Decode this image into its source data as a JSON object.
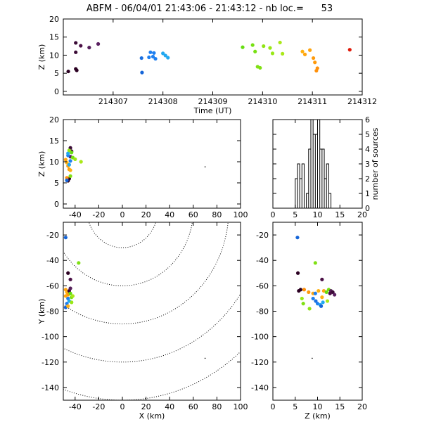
{
  "title": "ABFM - 06/04/01 21:43:06 - 21:43:12 - nb loc.=      53",
  "chart_data": [
    {
      "id": "time-height",
      "type": "scatter",
      "xlabel": "Time (UT)",
      "ylabel": "Z (km)",
      "xlim": [
        214306.0,
        214312.0
      ],
      "ylim": [
        -1,
        20
      ],
      "xticks": [
        "214307",
        "214308",
        "214309",
        "214310",
        "214311",
        "214312"
      ],
      "yticks": [
        0,
        5,
        10,
        15,
        20
      ],
      "points": [
        {
          "t": 214306.1,
          "z": 5.5,
          "c": "#2b0022"
        },
        {
          "t": 214306.25,
          "z": 6.2,
          "c": "#2b0022"
        },
        {
          "t": 214306.27,
          "z": 5.8,
          "c": "#2b0022"
        },
        {
          "t": 214306.25,
          "z": 10.8,
          "c": "#3a0a36"
        },
        {
          "t": 214306.25,
          "z": 13.4,
          "c": "#3a0a36"
        },
        {
          "t": 214306.35,
          "z": 12.6,
          "c": "#4a0f45"
        },
        {
          "t": 214306.52,
          "z": 12.1,
          "c": "#55205a"
        },
        {
          "t": 214306.7,
          "z": 13.1,
          "c": "#5a2060"
        },
        {
          "t": 214307.58,
          "z": 5.2,
          "c": "#1565d8"
        },
        {
          "t": 214307.57,
          "z": 9.2,
          "c": "#1a6fe0"
        },
        {
          "t": 214307.75,
          "z": 10.8,
          "c": "#1e7ff0"
        },
        {
          "t": 214307.8,
          "z": 9.6,
          "c": "#1e7ff0"
        },
        {
          "t": 214307.85,
          "z": 9.0,
          "c": "#1e7ff0"
        },
        {
          "t": 214307.72,
          "z": 9.4,
          "c": "#1e7ff0"
        },
        {
          "t": 214307.82,
          "z": 10.6,
          "c": "#1e7ff0"
        },
        {
          "t": 214308.05,
          "z": 9.9,
          "c": "#22a8f0"
        },
        {
          "t": 214308.1,
          "z": 9.3,
          "c": "#22a8f0"
        },
        {
          "t": 214308.0,
          "z": 10.5,
          "c": "#22a8f0"
        },
        {
          "t": 214309.6,
          "z": 12.2,
          "c": "#66dd11"
        },
        {
          "t": 214309.8,
          "z": 12.8,
          "c": "#77e012"
        },
        {
          "t": 214309.85,
          "z": 11.0,
          "c": "#77e012"
        },
        {
          "t": 214309.9,
          "z": 6.8,
          "c": "#80e014"
        },
        {
          "t": 214309.95,
          "z": 6.5,
          "c": "#80e014"
        },
        {
          "t": 214310.02,
          "z": 12.5,
          "c": "#90e414"
        },
        {
          "t": 214310.15,
          "z": 12.0,
          "c": "#99e816"
        },
        {
          "t": 214310.2,
          "z": 10.5,
          "c": "#99e816"
        },
        {
          "t": 214310.35,
          "z": 13.5,
          "c": "#aae818"
        },
        {
          "t": 214310.4,
          "z": 10.4,
          "c": "#aae818"
        },
        {
          "t": 214310.8,
          "z": 11.0,
          "c": "#ffb010"
        },
        {
          "t": 214310.85,
          "z": 10.2,
          "c": "#ffa510"
        },
        {
          "t": 214310.95,
          "z": 11.4,
          "c": "#ffa510"
        },
        {
          "t": 214311.02,
          "z": 9.2,
          "c": "#ff9a0a"
        },
        {
          "t": 214311.05,
          "z": 8.0,
          "c": "#ff9a0a"
        },
        {
          "t": 214311.1,
          "z": 6.4,
          "c": "#ff900a"
        },
        {
          "t": 214311.08,
          "z": 5.7,
          "c": "#ff900a"
        },
        {
          "t": 214311.75,
          "z": 11.5,
          "c": "#e01a0a"
        }
      ]
    },
    {
      "id": "x-height",
      "type": "scatter",
      "xlabel": "",
      "ylabel": "Z (km)",
      "xlim": [
        -50,
        100
      ],
      "ylim": [
        -1,
        20
      ],
      "xticks": [
        -40,
        -20,
        0,
        20,
        40,
        60,
        80,
        100
      ],
      "yticks": [
        0,
        5,
        10,
        15,
        20
      ],
      "points": [
        {
          "x": -46,
          "z": 5.5,
          "c": "#2b0022"
        },
        {
          "x": -45,
          "z": 6.0,
          "c": "#2b0022"
        },
        {
          "x": -44,
          "z": 13.3,
          "c": "#3a0a36"
        },
        {
          "x": -43,
          "z": 12.5,
          "c": "#4a0f45"
        },
        {
          "x": -44,
          "z": 11.2,
          "c": "#55205a"
        },
        {
          "x": -47,
          "z": 9.8,
          "c": "#ffb010"
        },
        {
          "x": -48,
          "z": 10.5,
          "c": "#ffa510"
        },
        {
          "x": -46,
          "z": 9.0,
          "c": "#ffa510"
        },
        {
          "x": -45,
          "z": 8.2,
          "c": "#ff9a0a"
        },
        {
          "x": -47,
          "z": 6.2,
          "c": "#ff900a"
        },
        {
          "x": -46,
          "z": 11.5,
          "c": "#1e7ff0"
        },
        {
          "x": -44,
          "z": 10.2,
          "c": "#1e7ff0"
        },
        {
          "x": -45,
          "z": 9.3,
          "c": "#22a8f0"
        },
        {
          "x": -46,
          "z": 12.0,
          "c": "#22a8f0"
        },
        {
          "x": -47,
          "z": 5.6,
          "c": "#1565d8"
        },
        {
          "x": -43,
          "z": 12.2,
          "c": "#66dd11"
        },
        {
          "x": -42,
          "z": 11.0,
          "c": "#77e012"
        },
        {
          "x": -44,
          "z": 6.6,
          "c": "#80e014"
        },
        {
          "x": -40,
          "z": 10.6,
          "c": "#99e816"
        },
        {
          "x": -35,
          "z": 10.0,
          "c": "#aae818"
        },
        {
          "x": -45,
          "z": 12.7,
          "c": "#90e414"
        },
        {
          "x": -44,
          "z": 8.0,
          "c": "#ffb010"
        },
        {
          "x": 70,
          "z": 8.8,
          "c": "#000000",
          "r": 0.8
        }
      ]
    },
    {
      "id": "height-histogram",
      "type": "bar",
      "xlabel": "",
      "ylabel": "number of sources",
      "xlim": [
        0,
        20
      ],
      "ylim": [
        0,
        6
      ],
      "xticks": [
        0,
        5,
        10,
        15,
        20
      ],
      "yticks": [
        0,
        1,
        2,
        3,
        4,
        5,
        6
      ],
      "bin_width": 0.5,
      "bins": [
        {
          "x0": 5.0,
          "count": 2
        },
        {
          "x0": 5.5,
          "count": 3
        },
        {
          "x0": 6.0,
          "count": 2
        },
        {
          "x0": 6.5,
          "count": 3
        },
        {
          "x0": 7.0,
          "count": 0
        },
        {
          "x0": 7.5,
          "count": 1
        },
        {
          "x0": 8.0,
          "count": 4
        },
        {
          "x0": 8.5,
          "count": 6
        },
        {
          "x0": 9.0,
          "count": 5
        },
        {
          "x0": 9.5,
          "count": 5
        },
        {
          "x0": 10.0,
          "count": 6
        },
        {
          "x0": 10.5,
          "count": 4
        },
        {
          "x0": 11.0,
          "count": 4
        },
        {
          "x0": 11.5,
          "count": 2
        },
        {
          "x0": 12.0,
          "count": 3
        },
        {
          "x0": 12.5,
          "count": 1
        },
        {
          "x0": 13.0,
          "count": 0
        }
      ]
    },
    {
      "id": "plan-view",
      "type": "scatter",
      "xlabel": "X (km)",
      "ylabel": "Y (km)",
      "xlim": [
        -50,
        100
      ],
      "ylim": [
        -150,
        -10
      ],
      "xticks": [
        -40,
        -20,
        0,
        20,
        40,
        60,
        80,
        100
      ],
      "yticks": [
        -20,
        -40,
        -60,
        -80,
        -100,
        -120,
        -140
      ],
      "range_rings_km": [
        30,
        60,
        90,
        120,
        150,
        180
      ],
      "ring_center": [
        0,
        0
      ],
      "points": [
        {
          "x": -48,
          "y": -22,
          "c": "#1565d8"
        },
        {
          "x": -37,
          "y": -42,
          "c": "#80e014"
        },
        {
          "x": -46,
          "y": -50,
          "c": "#2b0022"
        },
        {
          "x": -44,
          "y": -55,
          "c": "#4a0f45"
        },
        {
          "x": -48,
          "y": -63,
          "c": "#ffa510"
        },
        {
          "x": -47,
          "y": -65,
          "c": "#ffb010"
        },
        {
          "x": -46,
          "y": -67,
          "c": "#ff9a0a"
        },
        {
          "x": -45,
          "y": -64,
          "c": "#3a0a36"
        },
        {
          "x": -48,
          "y": -68,
          "c": "#ffa510"
        },
        {
          "x": -46,
          "y": -70,
          "c": "#1e7ff0"
        },
        {
          "x": -44,
          "y": -66,
          "c": "#66dd11"
        },
        {
          "x": -43,
          "y": -69,
          "c": "#77e012"
        },
        {
          "x": -45,
          "y": -72,
          "c": "#22a8f0"
        },
        {
          "x": -47,
          "y": -74,
          "c": "#1e7ff0"
        },
        {
          "x": -48,
          "y": -77,
          "c": "#1565d8"
        },
        {
          "x": -43,
          "y": -73,
          "c": "#99e816"
        },
        {
          "x": -46,
          "y": -76,
          "c": "#ffb010"
        },
        {
          "x": -44,
          "y": -62,
          "c": "#55205a"
        },
        {
          "x": -42,
          "y": -68,
          "c": "#aae818"
        },
        {
          "x": 70,
          "y": -117,
          "c": "#000000",
          "r": 0.8
        }
      ]
    },
    {
      "id": "z-y-view",
      "type": "scatter",
      "xlabel": "Z (km)",
      "ylabel": "",
      "xlim": [
        0,
        20
      ],
      "ylim": [
        -150,
        -10
      ],
      "xticks": [
        0,
        5,
        10,
        15,
        20
      ],
      "yticks": [
        -20,
        -40,
        -60,
        -80,
        -100,
        -120,
        -140
      ],
      "points": [
        {
          "z": 5.5,
          "y": -22,
          "c": "#1565d8"
        },
        {
          "z": 9.5,
          "y": -42,
          "c": "#80e014"
        },
        {
          "z": 5.6,
          "y": -50,
          "c": "#2b0022"
        },
        {
          "z": 11.0,
          "y": -55,
          "c": "#4a0f45"
        },
        {
          "z": 6.2,
          "y": -63,
          "c": "#2b0022"
        },
        {
          "z": 5.8,
          "y": -64,
          "c": "#2b0022"
        },
        {
          "z": 7.0,
          "y": -63,
          "c": "#ff900a"
        },
        {
          "z": 8.0,
          "y": -65,
          "c": "#ff9a0a"
        },
        {
          "z": 9.0,
          "y": -66,
          "c": "#ffa510"
        },
        {
          "z": 10.2,
          "y": -64,
          "c": "#ffb010"
        },
        {
          "z": 11.4,
          "y": -64,
          "c": "#ffa510"
        },
        {
          "z": 12.0,
          "y": -65,
          "c": "#66dd11"
        },
        {
          "z": 12.5,
          "y": -63,
          "c": "#77e012"
        },
        {
          "z": 13.0,
          "y": -64,
          "c": "#55205a"
        },
        {
          "z": 13.4,
          "y": -65,
          "c": "#3a0a36"
        },
        {
          "z": 12.8,
          "y": -66,
          "c": "#4a0f45"
        },
        {
          "z": 13.8,
          "y": -67,
          "c": "#5a2060"
        },
        {
          "z": 9.5,
          "y": -66,
          "c": "#1e7ff0"
        },
        {
          "z": 9.0,
          "y": -70,
          "c": "#1e7ff0"
        },
        {
          "z": 9.6,
          "y": -72,
          "c": "#1a6fe0"
        },
        {
          "z": 10.0,
          "y": -74,
          "c": "#1e7ff0"
        },
        {
          "z": 10.6,
          "y": -75,
          "c": "#22a8f0"
        },
        {
          "z": 11.2,
          "y": -73,
          "c": "#22a8f0"
        },
        {
          "z": 10.8,
          "y": -76,
          "c": "#1565d8"
        },
        {
          "z": 6.8,
          "y": -74,
          "c": "#80e014"
        },
        {
          "z": 6.5,
          "y": -70,
          "c": "#99e816"
        },
        {
          "z": 12.2,
          "y": -72,
          "c": "#aae818"
        },
        {
          "z": 8.2,
          "y": -78,
          "c": "#90e414"
        },
        {
          "z": 11.0,
          "y": -69,
          "c": "#ffb010"
        },
        {
          "z": 8.8,
          "y": -117,
          "c": "#000000",
          "r": 0.8
        }
      ]
    }
  ]
}
